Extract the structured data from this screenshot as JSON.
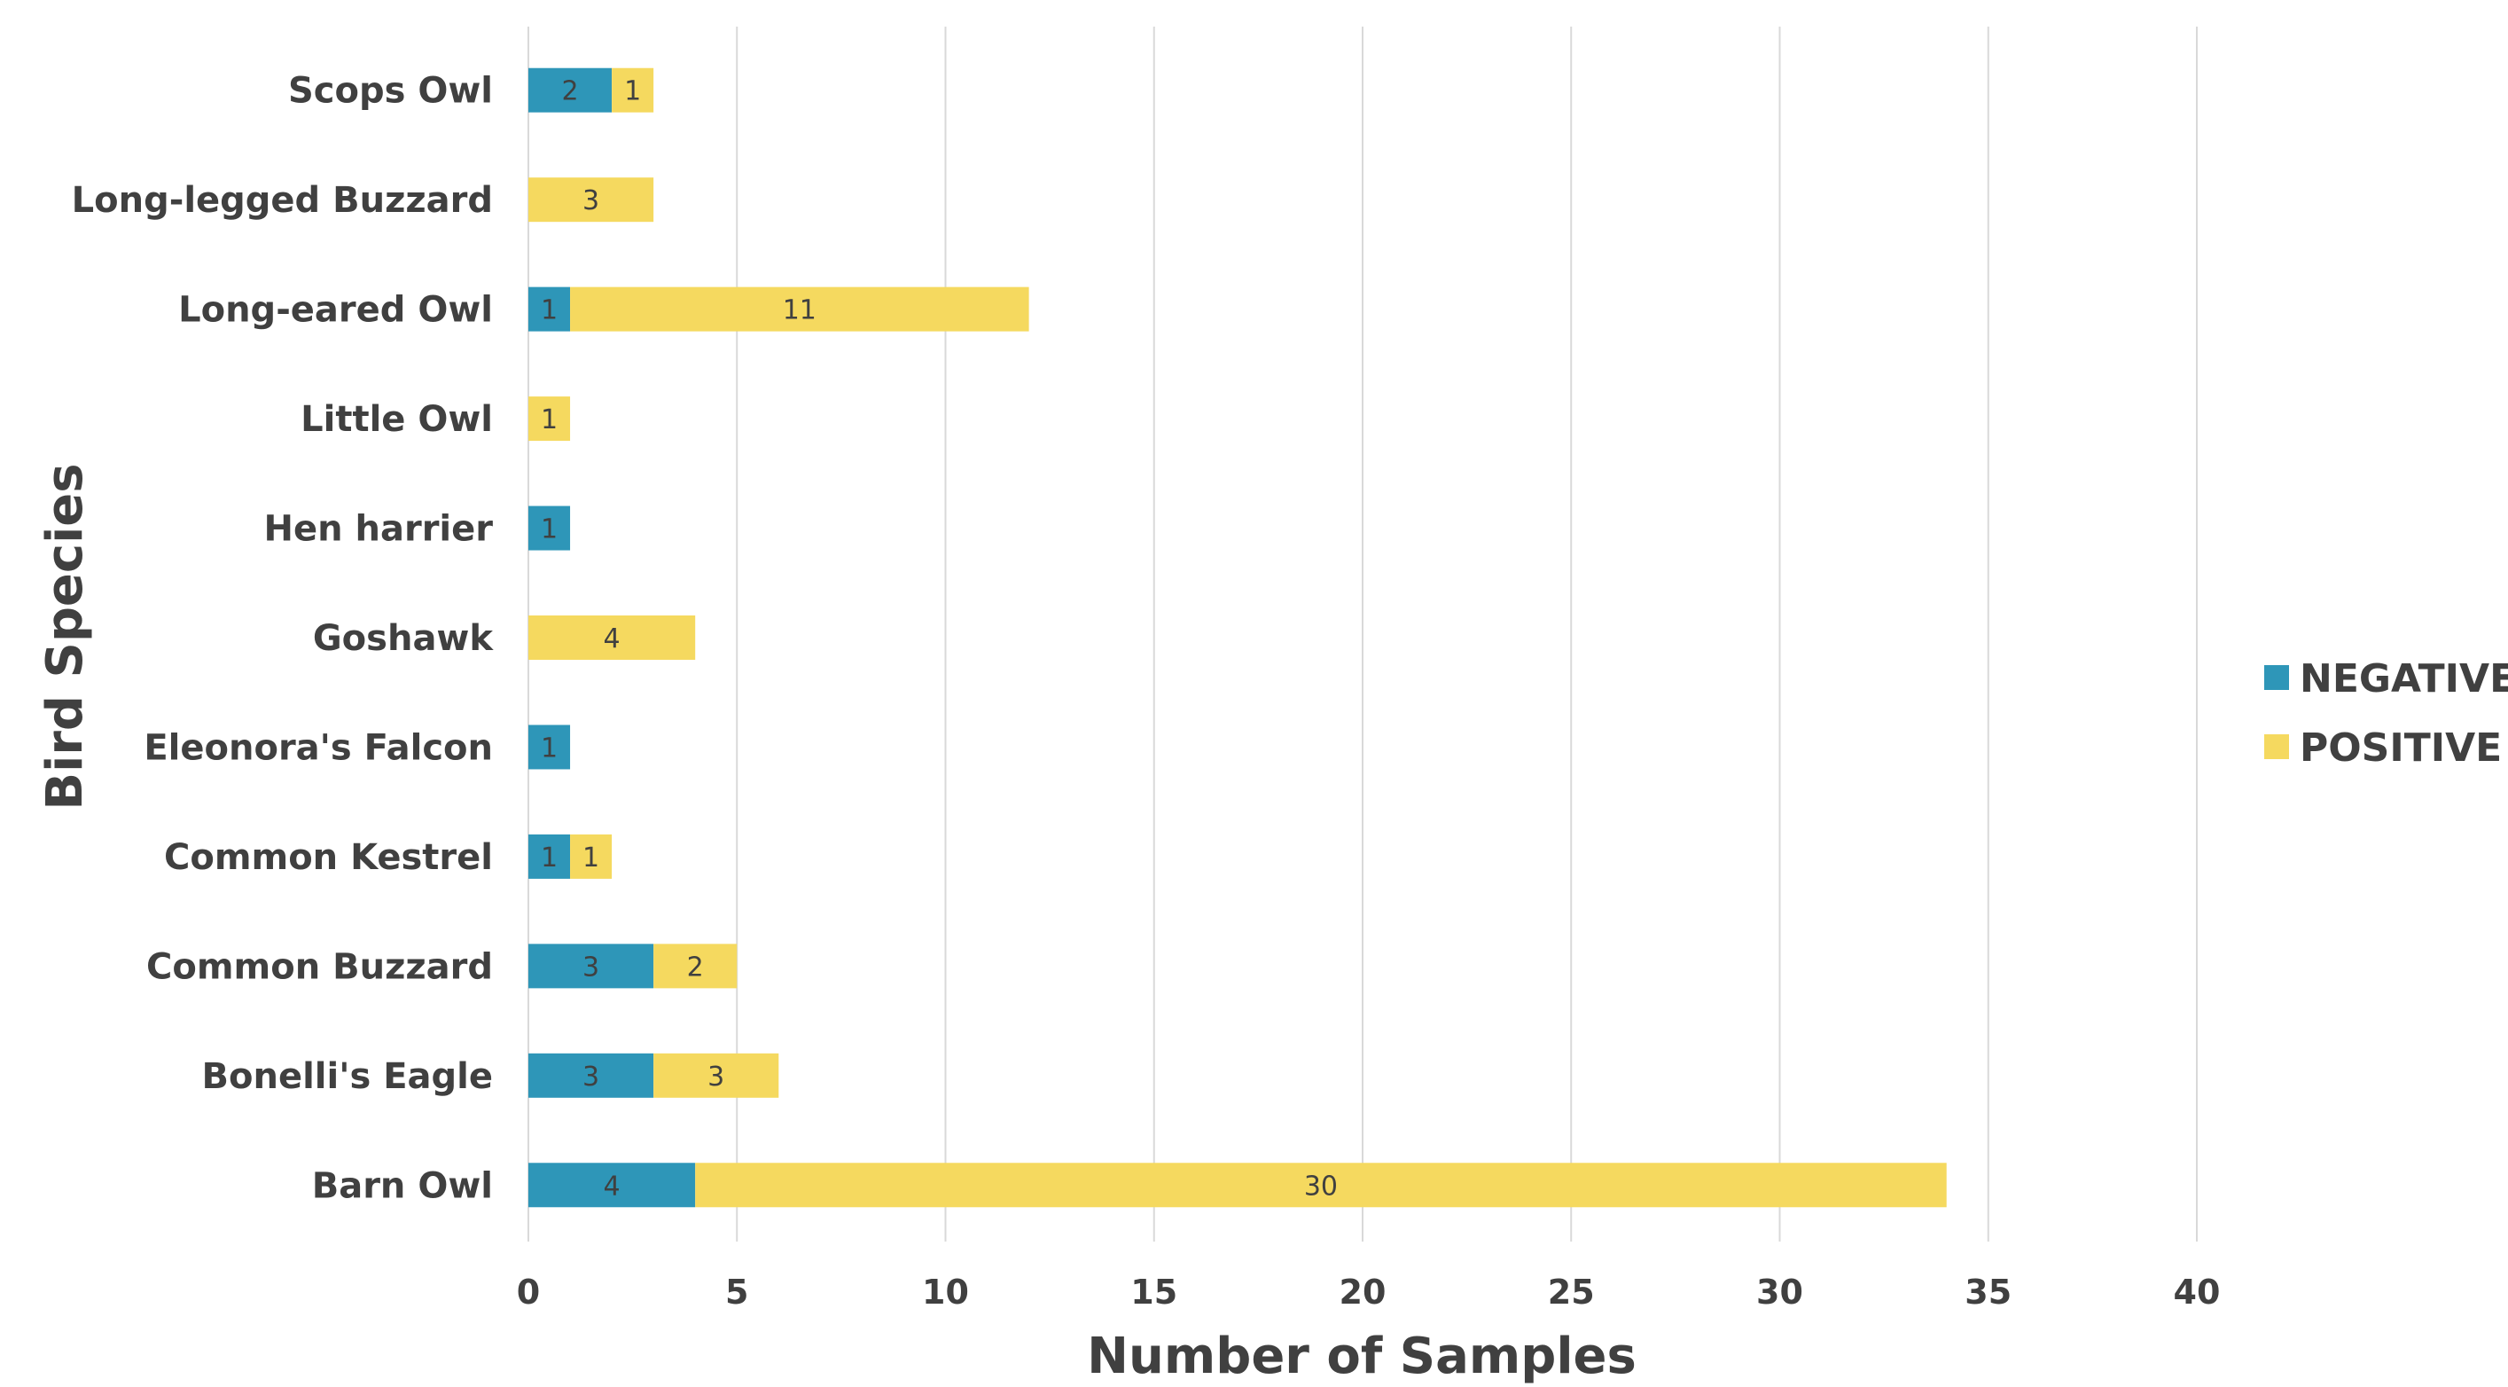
{
  "chart_data": {
    "type": "bar",
    "orientation": "horizontal",
    "stacked": true,
    "categories": [
      "Barn Owl",
      "Bonelli's Eagle",
      "Common Buzzard",
      "Common Kestrel",
      "Eleonora's Falcon",
      "Goshawk",
      "Hen harrier",
      "Little Owl",
      "Long-eared Owl",
      "Long-legged Buzzard",
      "Scops Owl"
    ],
    "series": [
      {
        "name": "NEGATIVE",
        "color": "#2e96b8",
        "values": [
          4,
          3,
          3,
          1,
          1,
          0,
          1,
          0,
          1,
          0,
          2
        ]
      },
      {
        "name": "POSITIVE",
        "color": "#f5d95f",
        "values": [
          30,
          3,
          2,
          1,
          0,
          4,
          0,
          1,
          11,
          3,
          1
        ]
      }
    ],
    "xlabel": "Number of Samples",
    "ylabel": "Bird Species",
    "xlim": [
      0,
      40
    ],
    "xticks": [
      "0",
      "5",
      "10",
      "15",
      "20",
      "25",
      "30",
      "35",
      "40"
    ],
    "grid": "vertical",
    "legend_position": "right",
    "data_labels": true
  }
}
